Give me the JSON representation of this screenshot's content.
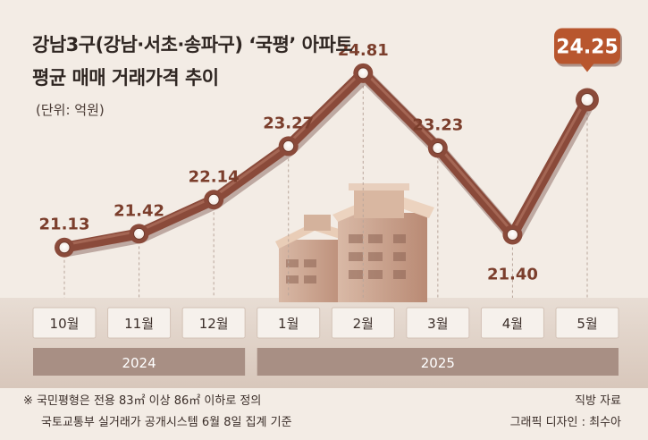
{
  "title_line1": "강남3구(강남·서초·송파구) ‘국평’ 아파트",
  "title_line2": "평균 매매 거래가격 추이",
  "unit": "(단위: 억원)",
  "footnote_line1": "※ 국민평형은 전용 83㎡ 이상 86㎡ 이하로 정의",
  "footnote_line2": "국토교통부 실거래가 공개시스템 6월 8일 집계 기준",
  "source": "직방 자료",
  "credit": "그래픽 디자인 : 최수아",
  "colors": {
    "line": "#8a4a3a",
    "highlight": "#b8562e",
    "band": "#e0d1c6",
    "year_bar": "#a88f84"
  },
  "chart_data": {
    "type": "line",
    "categories": [
      "10월",
      "11월",
      "12월",
      "1월",
      "2월",
      "3월",
      "4월",
      "5월"
    ],
    "values": [
      21.13,
      21.42,
      22.14,
      23.27,
      24.81,
      23.23,
      21.4,
      24.25
    ],
    "value_labels": [
      "21.13",
      "21.42",
      "22.14",
      "23.27",
      "24.81",
      "23.23",
      "21.40",
      "24.25"
    ],
    "years": [
      {
        "label": "2024",
        "from": 0,
        "to": 2
      },
      {
        "label": "2025",
        "from": 3,
        "to": 7
      }
    ],
    "highlight_index": 7,
    "ylim": [
      20.2,
      25.6
    ]
  }
}
